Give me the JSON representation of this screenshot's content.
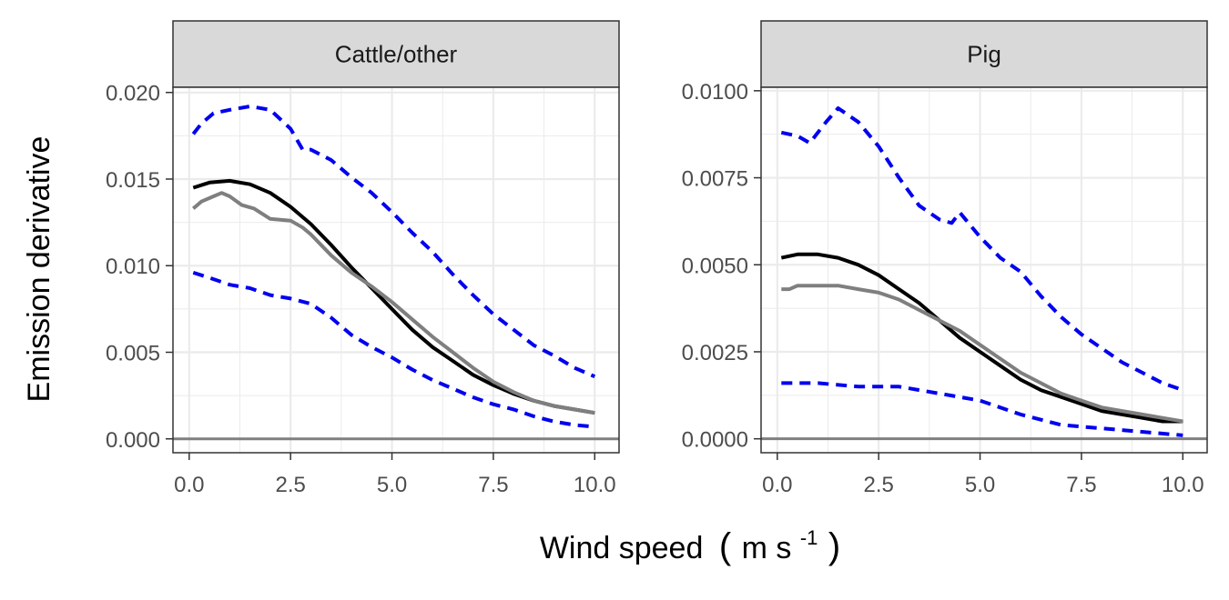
{
  "chart_data": {
    "type": "line",
    "ylabel": "Emission derivative",
    "xlabel": {
      "text": "Wind speed",
      "open_paren": "(",
      "unit": "m s",
      "exponent": "-1",
      "close_paren": ")"
    },
    "colors": {
      "fitted": "#000000",
      "empirical": "#7f7f7f",
      "interval": "#0000ee",
      "zero_line": "#7f7f7f",
      "grid_major": "#ebebeb",
      "strip_fill": "#d9d9d9"
    },
    "grid": true,
    "legend": "none",
    "panels": [
      {
        "label": "Cattle/other",
        "xlim": [
          -0.4,
          10.6
        ],
        "ylim": [
          -0.0008,
          0.0203
        ],
        "x_ticks": [
          0,
          2.5,
          5,
          7.5,
          10
        ],
        "x_tick_labels": [
          "0.0",
          "2.5",
          "5.0",
          "7.5",
          "10.0"
        ],
        "y_ticks": [
          0,
          0.005,
          0.01,
          0.015,
          0.02
        ],
        "y_tick_labels": [
          "0.000",
          "0.005",
          "0.010",
          "0.015",
          "0.020"
        ],
        "series": [
          {
            "role": "upper",
            "style": "dashed",
            "x": [
              0.1,
              0.3,
              0.6,
              1.0,
              1.5,
              2.0,
              2.5,
              2.8,
              3.0,
              3.5,
              4.0,
              4.5,
              5.0,
              5.5,
              6.0,
              6.5,
              7.0,
              7.5,
              8.0,
              8.5,
              9.0,
              9.5,
              10.0
            ],
            "y": [
              0.0176,
              0.0182,
              0.0188,
              0.019,
              0.0192,
              0.019,
              0.0179,
              0.0167,
              0.0167,
              0.0161,
              0.0151,
              0.0142,
              0.0131,
              0.0119,
              0.0108,
              0.0095,
              0.0083,
              0.0072,
              0.0063,
              0.0054,
              0.0048,
              0.0041,
              0.0036
            ]
          },
          {
            "role": "fitted",
            "style": "solid",
            "x": [
              0.1,
              0.5,
              1.0,
              1.5,
              2.0,
              2.5,
              3.0,
              3.5,
              4.0,
              4.5,
              5.0,
              5.5,
              6.0,
              6.5,
              7.0,
              7.5,
              8.0,
              8.5,
              9.0,
              9.5,
              10.0
            ],
            "y": [
              0.0145,
              0.0148,
              0.0149,
              0.0147,
              0.0142,
              0.0134,
              0.0124,
              0.0112,
              0.0099,
              0.0087,
              0.0075,
              0.0063,
              0.0053,
              0.0045,
              0.0037,
              0.0031,
              0.0026,
              0.0022,
              0.0019,
              0.0017,
              0.0015
            ]
          },
          {
            "role": "empirical",
            "style": "solid",
            "x": [
              0.1,
              0.3,
              0.6,
              0.8,
              1.0,
              1.3,
              1.6,
              2.0,
              2.5,
              2.8,
              3.0,
              3.5,
              4.0,
              4.5,
              5.0,
              5.5,
              6.0,
              6.5,
              7.0,
              7.5,
              8.0,
              8.5,
              9.0,
              9.5,
              10.0
            ],
            "y": [
              0.0133,
              0.0137,
              0.014,
              0.0142,
              0.014,
              0.0135,
              0.0133,
              0.0127,
              0.0126,
              0.0122,
              0.0118,
              0.0106,
              0.0096,
              0.0088,
              0.0079,
              0.0069,
              0.0059,
              0.005,
              0.0041,
              0.0033,
              0.0027,
              0.0022,
              0.0019,
              0.0017,
              0.0015
            ]
          },
          {
            "role": "lower",
            "style": "dashed",
            "x": [
              0.1,
              0.5,
              1.0,
              1.5,
              2.0,
              2.5,
              3.0,
              3.5,
              4.0,
              4.5,
              5.0,
              5.5,
              6.0,
              6.5,
              7.0,
              7.5,
              8.0,
              8.5,
              9.0,
              9.5,
              10.0
            ],
            "y": [
              0.0096,
              0.0093,
              0.0089,
              0.0087,
              0.0083,
              0.0081,
              0.0078,
              0.007,
              0.006,
              0.0053,
              0.0047,
              0.004,
              0.0034,
              0.0029,
              0.0024,
              0.002,
              0.0017,
              0.0013,
              0.001,
              0.0008,
              0.0007
            ]
          }
        ]
      },
      {
        "label": "Pig",
        "xlim": [
          -0.4,
          10.6
        ],
        "ylim": [
          -0.0004,
          0.0101
        ],
        "x_ticks": [
          0,
          2.5,
          5,
          7.5,
          10
        ],
        "x_tick_labels": [
          "0.0",
          "2.5",
          "5.0",
          "7.5",
          "10.0"
        ],
        "y_ticks": [
          0,
          0.0025,
          0.005,
          0.0075,
          0.01
        ],
        "y_tick_labels": [
          "0.0000",
          "0.0025",
          "0.0050",
          "0.0075",
          "0.0100"
        ],
        "series": [
          {
            "role": "upper",
            "style": "dashed",
            "x": [
              0.1,
              0.5,
              0.8,
              1.2,
              1.5,
              2.0,
              2.5,
              3.0,
              3.5,
              4.0,
              4.3,
              4.5,
              5.0,
              5.5,
              6.0,
              6.5,
              7.0,
              7.5,
              8.0,
              8.5,
              9.0,
              9.5,
              10.0
            ],
            "y": [
              0.0088,
              0.0087,
              0.0085,
              0.0091,
              0.0095,
              0.0091,
              0.0084,
              0.0075,
              0.0067,
              0.0063,
              0.0062,
              0.0065,
              0.0058,
              0.0052,
              0.0048,
              0.0041,
              0.0035,
              0.003,
              0.0026,
              0.0022,
              0.0019,
              0.0016,
              0.0014
            ]
          },
          {
            "role": "fitted",
            "style": "solid",
            "x": [
              0.1,
              0.5,
              1.0,
              1.5,
              2.0,
              2.5,
              3.0,
              3.5,
              4.0,
              4.5,
              5.0,
              5.5,
              6.0,
              6.5,
              7.0,
              7.5,
              8.0,
              8.5,
              9.0,
              9.5,
              10.0
            ],
            "y": [
              0.0052,
              0.0053,
              0.0053,
              0.0052,
              0.005,
              0.0047,
              0.0043,
              0.0039,
              0.0034,
              0.0029,
              0.0025,
              0.0021,
              0.0017,
              0.0014,
              0.0012,
              0.001,
              0.0008,
              0.0007,
              0.0006,
              0.0005,
              0.0005
            ]
          },
          {
            "role": "empirical",
            "style": "solid",
            "x": [
              0.1,
              0.3,
              0.5,
              1.0,
              1.5,
              2.0,
              2.5,
              3.0,
              3.5,
              4.0,
              4.5,
              5.0,
              5.5,
              6.0,
              6.5,
              7.0,
              7.5,
              8.0,
              8.5,
              9.0,
              9.5,
              10.0
            ],
            "y": [
              0.0043,
              0.0043,
              0.0044,
              0.0044,
              0.0044,
              0.0043,
              0.0042,
              0.004,
              0.0037,
              0.0034,
              0.0031,
              0.0027,
              0.0023,
              0.0019,
              0.0016,
              0.0013,
              0.0011,
              0.0009,
              0.0008,
              0.0007,
              0.0006,
              0.0005
            ]
          },
          {
            "role": "lower",
            "style": "dashed",
            "x": [
              0.1,
              0.5,
              1.0,
              2.0,
              3.0,
              4.0,
              5.0,
              6.0,
              7.0,
              8.0,
              9.0,
              10.0
            ],
            "y": [
              0.0016,
              0.0016,
              0.0016,
              0.0015,
              0.0015,
              0.0013,
              0.0011,
              0.0007,
              0.0004,
              0.0003,
              0.0002,
              0.0001
            ]
          }
        ]
      }
    ]
  }
}
